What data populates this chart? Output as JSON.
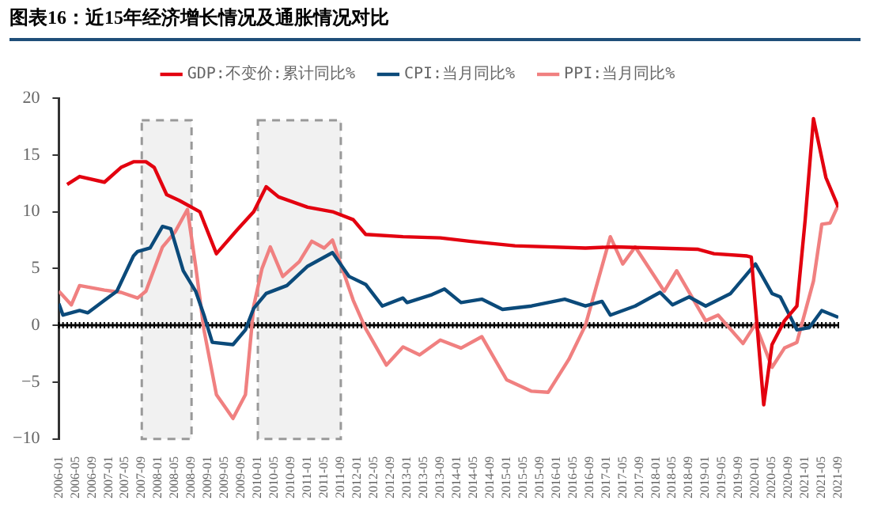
{
  "chart_data": {
    "type": "line",
    "title": "图表16：近15年经济增长情况及通胀情况对比",
    "xlim": [
      "2006-01",
      "2021-09"
    ],
    "xticks": [
      "2006-01",
      "2006-05",
      "2006-09",
      "2007-01",
      "2007-05",
      "2007-09",
      "2008-01",
      "2008-05",
      "2008-09",
      "2009-01",
      "2009-05",
      "2009-09",
      "2010-01",
      "2010-05",
      "2010-09",
      "2011-01",
      "2011-05",
      "2011-09",
      "2012-01",
      "2012-05",
      "2012-09",
      "2013-01",
      "2013-05",
      "2013-09",
      "2014-01",
      "2014-05",
      "2014-09",
      "2015-01",
      "2015-05",
      "2015-09",
      "2016-01",
      "2016-05",
      "2016-09",
      "2017-01",
      "2017-05",
      "2017-09",
      "2018-01",
      "2018-05",
      "2018-09",
      "2019-01",
      "2019-05",
      "2019-09",
      "2020-01",
      "2020-05",
      "2020-09",
      "2021-01",
      "2021-05",
      "2021-09"
    ],
    "ylim": [
      -10,
      20
    ],
    "yticks": [
      {
        "value": -10,
        "label": "−10"
      },
      {
        "value": -5,
        "label": "−5"
      },
      0,
      5,
      10,
      15,
      20
    ],
    "grid": false,
    "legend": "top",
    "marker": "none",
    "line_style": "solid",
    "ref_lines": [
      {
        "axis": "y",
        "value": 0,
        "color": "#000000"
      }
    ],
    "bands": [
      {
        "axis": "x",
        "from": "2007-09",
        "to": "2008-09",
        "color": "#999999"
      },
      {
        "axis": "x",
        "from": "2010-01",
        "to": "2011-09",
        "color": "#999999"
      }
    ],
    "series": [
      {
        "name": "GDP:不变价:累计同比%",
        "color": "#e3000f",
        "x": [
          "2006-03",
          "2006-06",
          "2006-12",
          "2007-04",
          "2007-07",
          "2007-10",
          "2007-12",
          "2008-03",
          "2008-06",
          "2008-11",
          "2009-03",
          "2009-08",
          "2009-12",
          "2010-03",
          "2010-06",
          "2011-01",
          "2011-07",
          "2011-12",
          "2012-03",
          "2012-12",
          "2013-09",
          "2014-04",
          "2015-03",
          "2016-08",
          "2017-03",
          "2018-11",
          "2019-03",
          "2019-11",
          "2019-12",
          "2020-03",
          "2020-05",
          "2020-08",
          "2020-11",
          "2021-01",
          "2021-03",
          "2021-06",
          "2021-09"
        ],
        "values": [
          12.4,
          13.1,
          12.6,
          13.9,
          14.4,
          14.4,
          13.9,
          11.5,
          11.0,
          10.0,
          6.3,
          8.4,
          10.0,
          12.2,
          11.3,
          10.4,
          10.0,
          9.3,
          8.0,
          7.8,
          7.7,
          7.4,
          7.0,
          6.8,
          6.9,
          6.7,
          6.3,
          6.1,
          6.0,
          -7.0,
          -1.7,
          0.4,
          1.7,
          9.3,
          18.2,
          13.0,
          10.4
        ]
      },
      {
        "name": "CPI:当月同比%",
        "color": "#0b4a7a",
        "x": [
          "2006-01",
          "2006-02",
          "2006-06",
          "2006-08",
          "2006-12",
          "2007-03",
          "2007-07",
          "2007-08",
          "2007-11",
          "2008-02",
          "2008-04",
          "2008-07",
          "2008-10",
          "2008-12",
          "2009-02",
          "2009-07",
          "2009-10",
          "2009-12",
          "2010-03",
          "2010-08",
          "2011-01",
          "2011-07",
          "2011-11",
          "2012-03",
          "2012-07",
          "2012-12",
          "2013-01",
          "2013-07",
          "2013-10",
          "2014-02",
          "2014-07",
          "2014-12",
          "2015-07",
          "2016-03",
          "2016-08",
          "2016-12",
          "2017-02",
          "2017-08",
          "2018-02",
          "2018-05",
          "2018-09",
          "2019-01",
          "2019-07",
          "2020-01",
          "2020-05",
          "2020-07",
          "2020-11",
          "2021-02",
          "2021-05",
          "2021-09"
        ],
        "values": [
          1.9,
          0.9,
          1.3,
          1.1,
          2.2,
          3.0,
          6.1,
          6.5,
          6.8,
          8.7,
          8.5,
          4.8,
          3.0,
          0.9,
          -1.5,
          -1.7,
          -0.4,
          1.5,
          2.8,
          3.5,
          5.2,
          6.4,
          4.3,
          3.6,
          1.7,
          2.4,
          2.0,
          2.7,
          3.2,
          2.0,
          2.3,
          1.4,
          1.7,
          2.3,
          1.7,
          2.1,
          0.9,
          1.7,
          2.9,
          1.8,
          2.5,
          1.7,
          2.8,
          5.4,
          2.8,
          2.5,
          -0.4,
          -0.2,
          1.3,
          0.7
        ]
      },
      {
        "name": "PPI:当月同比%",
        "color": "#f08080",
        "x": [
          "2006-01",
          "2006-04",
          "2006-06",
          "2006-12",
          "2007-04",
          "2007-08",
          "2007-10",
          "2008-02",
          "2008-05",
          "2008-08",
          "2008-10",
          "2008-12",
          "2009-03",
          "2009-07",
          "2009-10",
          "2009-12",
          "2010-02",
          "2010-04",
          "2010-07",
          "2010-11",
          "2011-02",
          "2011-05",
          "2011-07",
          "2011-12",
          "2012-03",
          "2012-08",
          "2012-12",
          "2013-04",
          "2013-09",
          "2014-02",
          "2014-07",
          "2015-01",
          "2015-07",
          "2015-11",
          "2016-04",
          "2016-08",
          "2017-02",
          "2017-05",
          "2017-08",
          "2018-03",
          "2018-06",
          "2019-01",
          "2019-04",
          "2019-10",
          "2020-01",
          "2020-05",
          "2020-08",
          "2020-11",
          "2021-03",
          "2021-05",
          "2021-07",
          "2021-09"
        ],
        "values": [
          3.0,
          1.8,
          3.5,
          3.1,
          2.9,
          2.4,
          3.0,
          6.9,
          8.2,
          10.2,
          5.2,
          -0.4,
          -6.1,
          -8.2,
          -6.1,
          1.7,
          5.0,
          6.9,
          4.3,
          5.6,
          7.4,
          6.8,
          7.5,
          2.2,
          -0.3,
          -3.5,
          -1.9,
          -2.6,
          -1.3,
          -2.0,
          -1.0,
          -4.8,
          -5.8,
          -5.9,
          -3.0,
          0.0,
          7.8,
          5.4,
          6.9,
          3.0,
          4.8,
          0.4,
          0.9,
          -1.6,
          0.1,
          -3.7,
          -2.0,
          -1.5,
          3.9,
          8.9,
          9.0,
          10.6
        ]
      }
    ]
  }
}
